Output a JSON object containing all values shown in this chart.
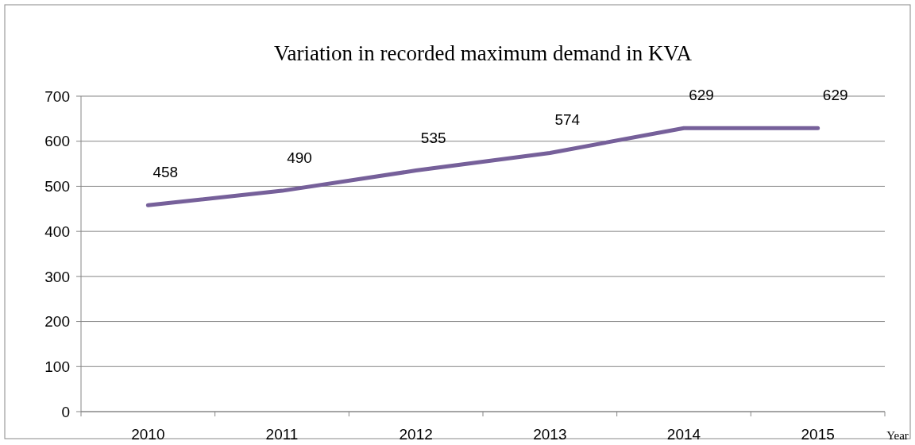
{
  "chart_data": {
    "type": "line",
    "title": "Variation in recorded maximum demand in KVA",
    "xlabel": "Year",
    "categories": [
      "2010",
      "2011",
      "2012",
      "2013",
      "2014",
      "2015"
    ],
    "series": [
      {
        "color": "#76609a",
        "values": [
          458,
          490,
          535,
          574,
          629,
          629
        ]
      }
    ],
    "ylim": [
      0,
      700
    ],
    "yticks": [
      0,
      100,
      200,
      300,
      400,
      500,
      600,
      700
    ],
    "grid": "y",
    "data_labels": true,
    "marker": "none",
    "line_style": "solid"
  }
}
